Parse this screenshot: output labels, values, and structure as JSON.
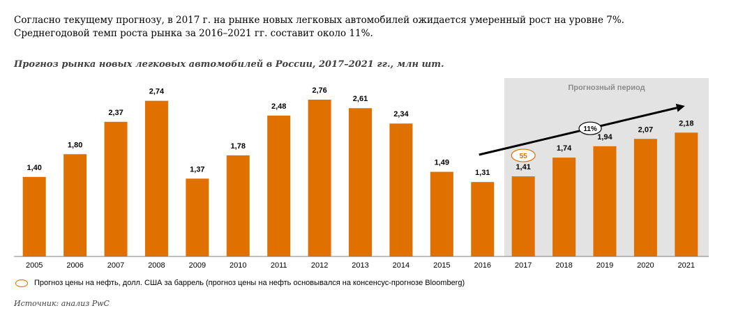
{
  "intro_text": "Согласно текущему прогнозу, в 2017 г. на рынке новых легковых автомобилей ожидается умеренный рост на уровне 7%. Среднегодовой темп роста рынка за 2016–2021 гг. составит около 11%.",
  "source": "Источник: анализ PwC",
  "legend_oil": "Прогноз цены на нефть, долл. США за баррель (прогноз цены на нефть основывался на консенсус-прогнозе Bloomberg)",
  "colors": {
    "bar": "#e07000",
    "forecast_bg": "#e3e3e3",
    "arrow": "#000000"
  },
  "chart_data": {
    "type": "bar",
    "title": "Прогноз рынка новых легковых автомобилей в России, 2017–2021 гг., млн шт.",
    "categories": [
      "2005",
      "2006",
      "2007",
      "2008",
      "2009",
      "2010",
      "2011",
      "2012",
      "2013",
      "2014",
      "2015",
      "2016",
      "2017",
      "2018",
      "2019",
      "2020",
      "2021"
    ],
    "values": [
      1.4,
      1.8,
      2.37,
      2.74,
      1.37,
      1.78,
      2.48,
      2.76,
      2.61,
      2.34,
      1.49,
      1.31,
      1.41,
      1.74,
      1.94,
      2.07,
      2.18
    ],
    "value_labels": [
      "1,40",
      "1,80",
      "2,37",
      "2,74",
      "1,37",
      "1,78",
      "2,48",
      "2,76",
      "2,61",
      "2,34",
      "1,49",
      "1,31",
      "1,41",
      "1,74",
      "1,94",
      "2,07",
      "2,18"
    ],
    "ylim": [
      0,
      2.76
    ],
    "grid": false,
    "forecast_region": {
      "label": "Прогнозный период",
      "from": "2017",
      "to": "2021"
    },
    "cagr_arrow": {
      "label": "11%",
      "from": "2016",
      "to": "2021"
    },
    "oil_price_annotation": {
      "category": "2017",
      "value": "55"
    }
  }
}
